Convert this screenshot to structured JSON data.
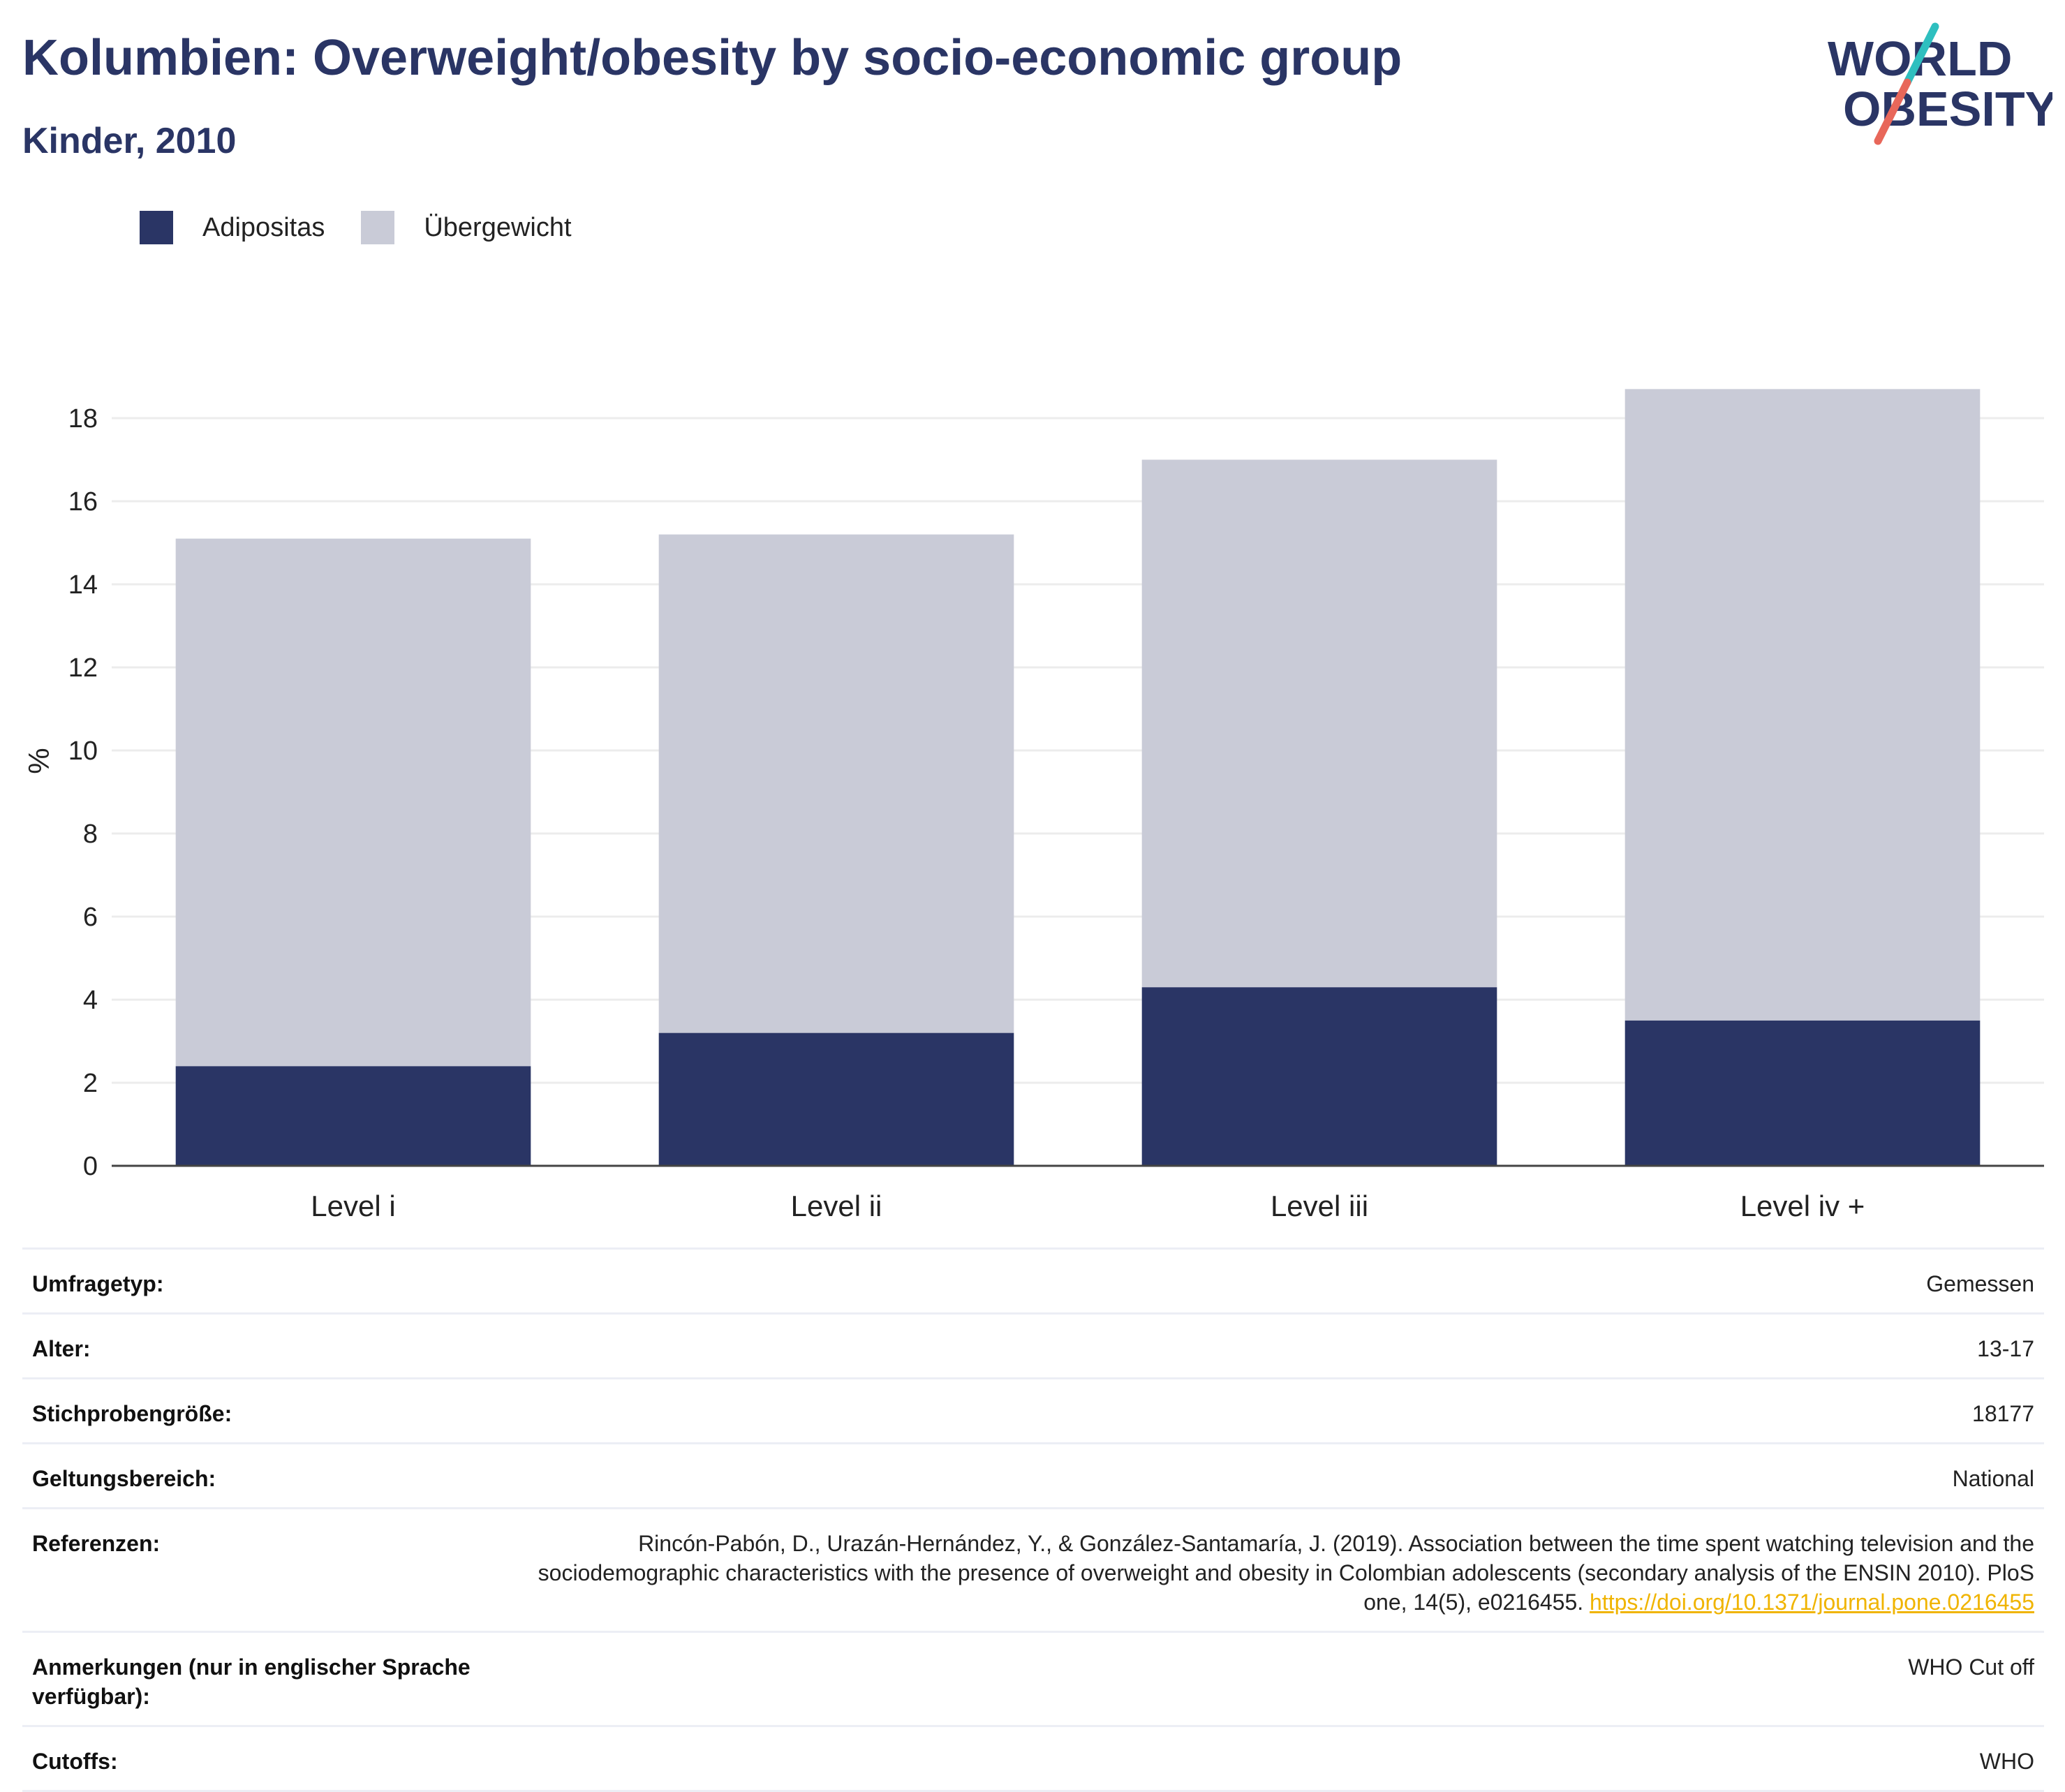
{
  "header": {
    "title": "Kolumbien: Overweight/obesity by socio-economic group",
    "subtitle": "Kinder, 2010"
  },
  "logo": {
    "line1": "WORLD",
    "line2": "OBESITY",
    "colors": {
      "text": "#2a3565",
      "accent_teal": "#2ebfbf",
      "accent_coral": "#e8675a"
    }
  },
  "colors": {
    "adipositas": "#2a3565",
    "uebergewicht": "#c9cbd7",
    "grid": "#ececec",
    "axis": "#444444",
    "title": "#2a3565",
    "link": "#f0b400"
  },
  "chart_data": {
    "type": "bar",
    "stacked": true,
    "categories": [
      "Level i",
      "Level ii",
      "Level iii",
      "Level iv +"
    ],
    "series": [
      {
        "name": "Adipositas",
        "values": [
          2.4,
          3.2,
          4.3,
          3.5
        ],
        "color": "#2a3565"
      },
      {
        "name": "Übergewicht",
        "values": [
          12.7,
          12.0,
          12.7,
          15.2
        ],
        "color": "#c9cbd7"
      }
    ],
    "ylabel": "%",
    "ylim": [
      0,
      19
    ],
    "yticks": [
      0,
      2,
      4,
      6,
      8,
      10,
      12,
      14,
      16,
      18
    ],
    "grid": true,
    "legend_position": "top-left"
  },
  "info": {
    "rows": [
      {
        "label": "Umfragetyp:",
        "value": "Gemessen"
      },
      {
        "label": "Alter:",
        "value": "13-17"
      },
      {
        "label": "Stichprobengröße:",
        "value": "18177"
      },
      {
        "label": "Geltungsbereich:",
        "value": "National"
      },
      {
        "label": "Referenzen:",
        "value": "Rincón-Pabón, D., Urazán-Hernández, Y., & González-Santamaría, J. (2019). Association between the time spent watching television and the sociodemographic characteristics with the presence of overweight and obesity in Colombian adolescents (secondary analysis of the ENSIN 2010). PloS one, 14(5), e0216455.",
        "link": "https://doi.org/10.1371/journal.pone.0216455"
      },
      {
        "label": "Anmerkungen (nur in englischer Sprache verfügbar):",
        "value": "WHO Cut off"
      },
      {
        "label": "Cutoffs:",
        "value": "WHO"
      }
    ]
  }
}
